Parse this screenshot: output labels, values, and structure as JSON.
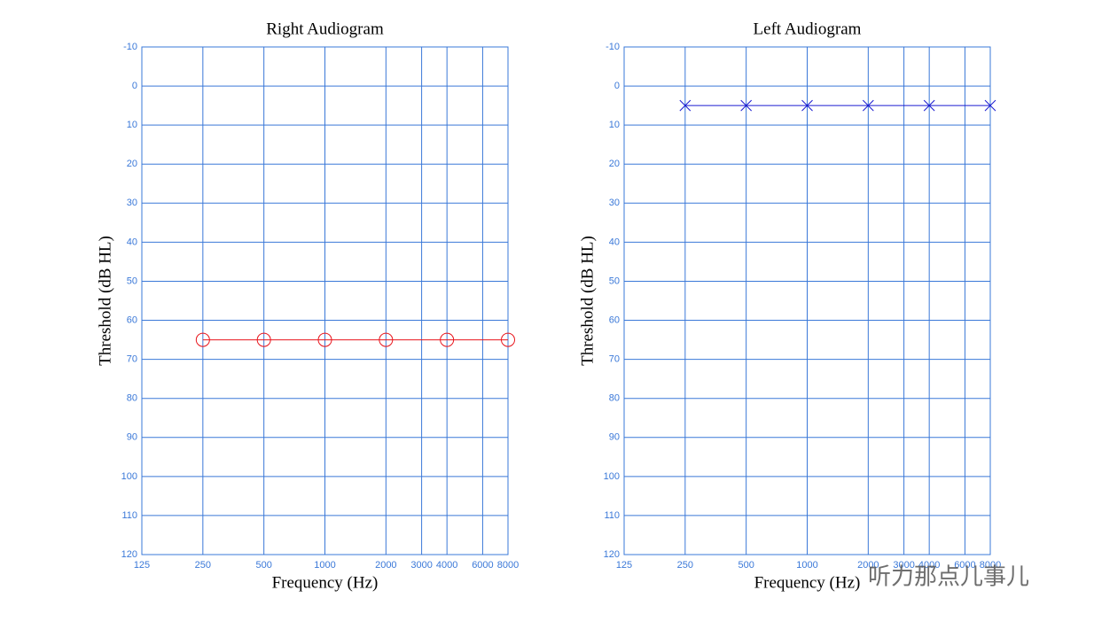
{
  "chart_data": [
    {
      "type": "line",
      "title": "Right Audiogram",
      "x_label": "Frequency (Hz)",
      "y_label": "Threshold (dB HL)",
      "x": [
        250,
        500,
        1000,
        2000,
        4000,
        8000
      ],
      "x_scale": "log",
      "y_reversed": true,
      "xlim": [
        125,
        8000
      ],
      "xticks": [
        125,
        250,
        500,
        1000,
        2000,
        3000,
        4000,
        6000,
        8000
      ],
      "ylim": [
        -10,
        120
      ],
      "yticks": [
        -10,
        0,
        10,
        20,
        30,
        40,
        50,
        60,
        70,
        80,
        90,
        100,
        110,
        120
      ],
      "grid": true,
      "grid_color": "#3a78d8",
      "series": [
        {
          "color": "#e8141b",
          "marker": "circle",
          "values": [
            65,
            65,
            65,
            65,
            65,
            65
          ]
        }
      ]
    },
    {
      "type": "line",
      "title": "Left Audiogram",
      "x_label": "Frequency (Hz)",
      "y_label": "Threshold (dB HL)",
      "x": [
        250,
        500,
        1000,
        2000,
        4000,
        8000
      ],
      "x_scale": "log",
      "y_reversed": true,
      "xlim": [
        125,
        8000
      ],
      "xticks": [
        125,
        250,
        500,
        1000,
        2000,
        3000,
        4000,
        6000,
        8000
      ],
      "ylim": [
        -10,
        120
      ],
      "yticks": [
        -10,
        0,
        10,
        20,
        30,
        40,
        50,
        60,
        70,
        80,
        90,
        100,
        110,
        120
      ],
      "grid": true,
      "grid_color": "#3a78d8",
      "series": [
        {
          "color": "#1a1ad0",
          "marker": "x",
          "values": [
            5,
            5,
            5,
            5,
            5,
            5
          ]
        }
      ]
    }
  ],
  "watermark": "听力那点儿事儿"
}
